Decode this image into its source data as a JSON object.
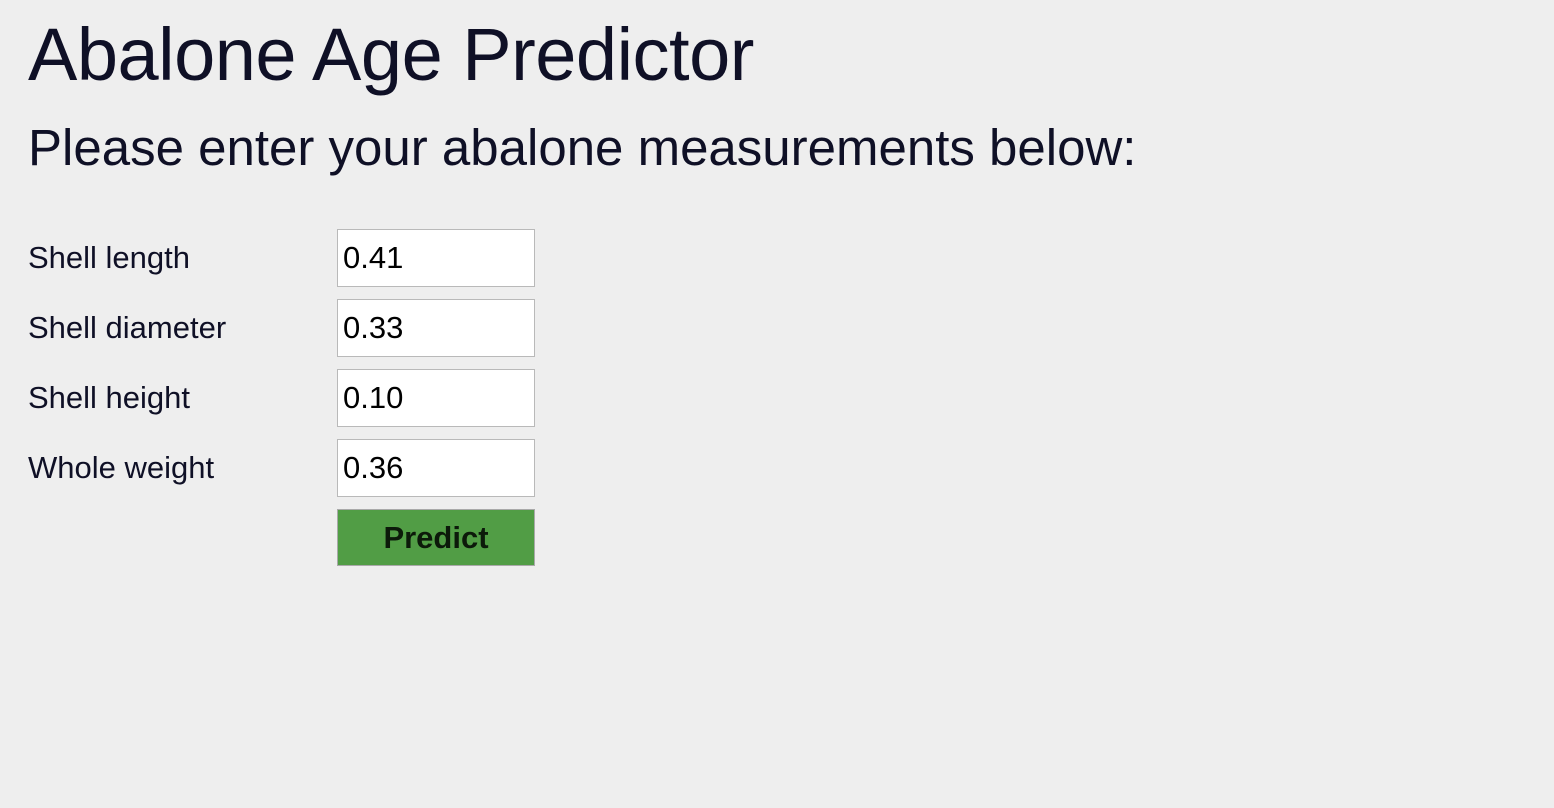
{
  "header": {
    "title": "Abalone Age Predictor",
    "subtitle": "Please enter your abalone measurements below:"
  },
  "form": {
    "fields": [
      {
        "label": "Shell length",
        "value": "0.41"
      },
      {
        "label": "Shell diameter",
        "value": "0.33"
      },
      {
        "label": "Shell height",
        "value": "0.10"
      },
      {
        "label": "Whole weight",
        "value": "0.36"
      }
    ],
    "submit_label": "Predict"
  },
  "colors": {
    "background": "#eeeeee",
    "text": "#0f1026",
    "button": "#519d45"
  }
}
